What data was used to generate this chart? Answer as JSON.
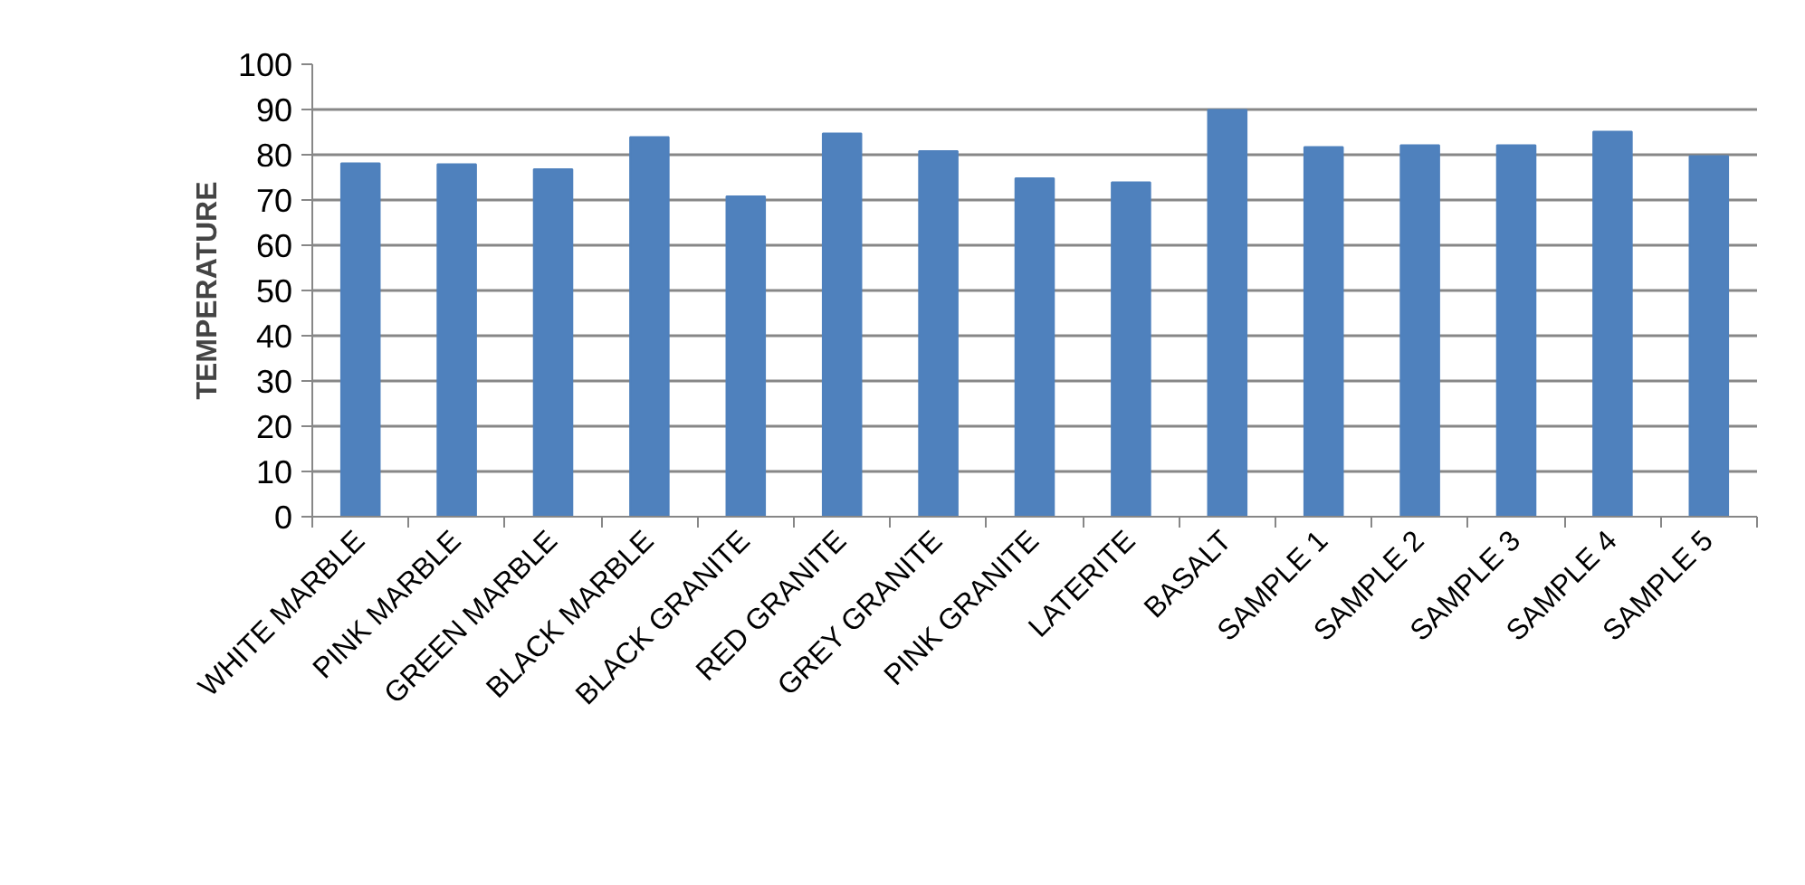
{
  "chart_data": {
    "type": "bar",
    "ylabel": "TEMPERATURE",
    "categories": [
      "WHITE MARBLE",
      "PINK MARBLE",
      "GREEN MARBLE",
      "BLACK MARBLE",
      "BLACK GRANITE",
      "RED GRANITE",
      "GREY GRANITE",
      "PINK GRANITE",
      "LATERITE",
      "BASALT",
      "SAMPLE 1",
      "SAMPLE 2",
      "SAMPLE 3",
      "SAMPLE 4",
      "SAMPLE 5"
    ],
    "values": [
      78.1,
      77.9,
      76.8,
      83.9,
      70.8,
      84.7,
      80.8,
      74.8,
      73.9,
      89.9,
      81.7,
      82.1,
      82.1,
      85.1,
      79.7
    ],
    "color": "#4f81bd",
    "ylim": [
      0,
      100
    ],
    "yticks": [
      0,
      10,
      20,
      30,
      40,
      50,
      60,
      70,
      80,
      90,
      100
    ],
    "grid": "y"
  }
}
